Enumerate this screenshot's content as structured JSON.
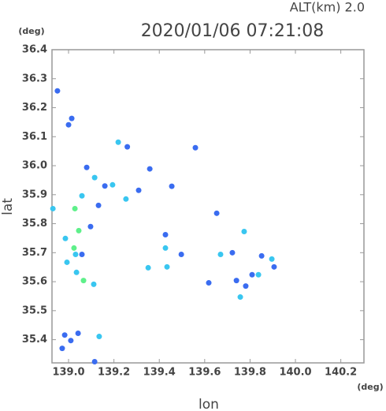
{
  "chart_data": {
    "type": "scatter",
    "title": "2020/01/06 07:21:08",
    "subtitle": "ALT(km) 2.0",
    "x_label": "lon",
    "y_label": "lat",
    "x_unit": "(deg)",
    "y_unit": "(deg)",
    "xlim": [
      138.927,
      140.302
    ],
    "ylim": [
      35.32,
      36.4
    ],
    "xticks": [
      {
        "value": 139,
        "label": "139.0"
      },
      139.2,
      139.4,
      139.6,
      139.8,
      {
        "value": 140,
        "label": "140.0"
      },
      140.2
    ],
    "yticks": [
      35.4,
      35.5,
      35.6,
      35.7,
      35.8,
      35.9,
      {
        "value": 36,
        "label": "36.0"
      },
      36.1,
      36.2,
      36.3,
      36.4
    ],
    "grid": false,
    "x": [
      138.951,
      139.014,
      139.0,
      139.08,
      139.115,
      139.16,
      139.194,
      139.059,
      139.132,
      139.028,
      138.931,
      139.045,
      139.097,
      138.986,
      139.024,
      139.031,
      139.059,
      138.993,
      139.035,
      139.066,
      139.111,
      139.219,
      139.259,
      139.358,
      139.309,
      139.253,
      139.351,
      139.434,
      139.427,
      139.497,
      139.653,
      139.67,
      139.722,
      139.774,
      139.618,
      139.74,
      139.757,
      139.781,
      139.809,
      139.851,
      139.896,
      139.906,
      139.837,
      138.983,
      139.01,
      139.042,
      138.972,
      139.135,
      139.115,
      139.455,
      139.559,
      139.427
    ],
    "values": [
      36.258,
      36.163,
      36.141,
      35.994,
      35.959,
      35.93,
      35.934,
      35.896,
      35.863,
      35.852,
      35.852,
      35.776,
      35.79,
      35.749,
      35.716,
      35.694,
      35.694,
      35.667,
      35.632,
      35.604,
      35.591,
      36.081,
      36.065,
      35.989,
      35.915,
      35.885,
      35.648,
      35.651,
      35.716,
      35.694,
      35.836,
      35.694,
      35.7,
      35.773,
      35.596,
      35.604,
      35.547,
      35.585,
      35.624,
      35.689,
      35.678,
      35.651,
      35.624,
      35.416,
      35.397,
      35.422,
      35.37,
      35.411,
      35.324,
      35.929,
      36.062,
      35.762
    ],
    "colors": [
      "#3a6cf0",
      "#3a6cf0",
      "#3a6cf0",
      "#3a6cf0",
      "#39c6f0",
      "#3a6cf0",
      "#39c6f0",
      "#39c6f0",
      "#3a6cf0",
      "#5ef08a",
      "#39c6f0",
      "#5ef08a",
      "#3a6cf0",
      "#39c6f0",
      "#5ef08a",
      "#39c6f0",
      "#3a6cf0",
      "#39c6f0",
      "#39c6f0",
      "#5ef08a",
      "#39c6f0",
      "#39c6f0",
      "#3a6cf0",
      "#3a6cf0",
      "#3a6cf0",
      "#39c6f0",
      "#39c6f0",
      "#39c6f0",
      "#39c6f0",
      "#3a6cf0",
      "#3a6cf0",
      "#39c6f0",
      "#3a6cf0",
      "#39c6f0",
      "#3a6cf0",
      "#3a6cf0",
      "#39c6f0",
      "#3a6cf0",
      "#3a6cf0",
      "#3a6cf0",
      "#39c6f0",
      "#3a6cf0",
      "#39c6f0",
      "#3a6cf0",
      "#3a6cf0",
      "#3a6cf0",
      "#3a6cf0",
      "#39c6f0",
      "#3a6cf0",
      "#3a6cf0",
      "#3a6cf0",
      "#3a6cf0"
    ]
  }
}
